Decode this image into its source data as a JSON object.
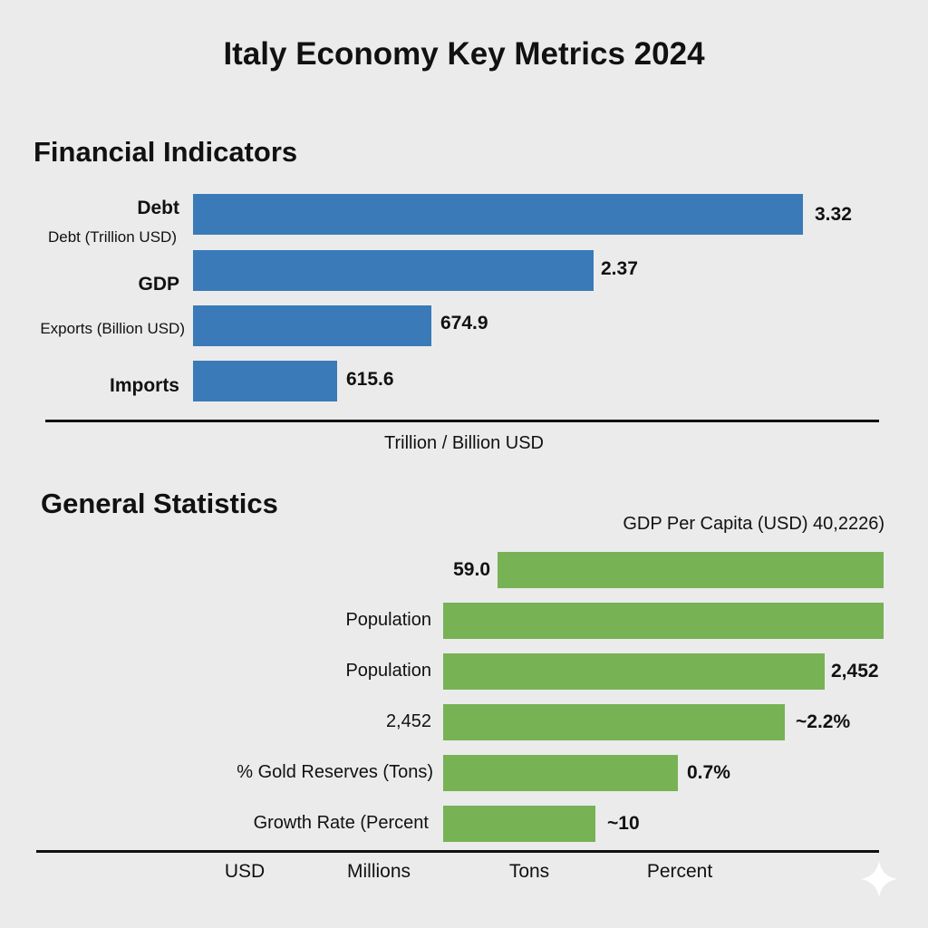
{
  "title": "Italy Economy Key Metrics 2024",
  "chart_data": [
    {
      "type": "bar",
      "orientation": "horizontal",
      "title": "Financial Indicators",
      "xlabel": "Trillion / Billion USD",
      "categories": [
        "Debt",
        "GDP",
        "Exports (Billion USD)",
        "Imports"
      ],
      "sublabels": [
        "Debt (Trillion USD)"
      ],
      "values": [
        3.32,
        2.37,
        674.9,
        615.6
      ],
      "value_labels": [
        "3.32",
        "2.37",
        "674.9",
        "615.6"
      ],
      "color": "#3a7ab8"
    },
    {
      "type": "bar",
      "orientation": "horizontal",
      "title": "General Statistics",
      "header": "GDP Per Capita (USD)  40,2226)",
      "categories": [
        "",
        "Population",
        "Population",
        "2,452",
        "% Gold Reserves (Tons)",
        "Growth Rate (Percent"
      ],
      "value_labels": [
        "59.0",
        "",
        "2,452",
        "~2.2%",
        "0.7%",
        "~10"
      ],
      "units": [
        "USD",
        "Millions",
        "Tons",
        "Percent"
      ],
      "color": "#77b255"
    }
  ]
}
